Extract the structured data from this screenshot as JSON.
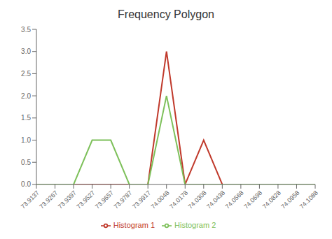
{
  "chart_data": {
    "type": "line",
    "title": "Frequency Polygon",
    "categories": [
      "73.9137",
      "73.9267",
      "73.9397",
      "73.9527",
      "73.9657",
      "73.9787",
      "73.9917",
      "74.0048",
      "74.0178",
      "74.0308",
      "74.0438",
      "74.0568",
      "74.0698",
      "74.0828",
      "74.0958",
      "74.1088"
    ],
    "series": [
      {
        "name": "Histogram 1",
        "color": "#C0392B",
        "values": [
          0,
          0,
          0,
          0,
          0,
          0,
          0,
          3,
          0,
          1,
          0,
          0,
          0,
          0,
          0,
          0
        ]
      },
      {
        "name": "Histogram 2",
        "color": "#7DC05A",
        "values": [
          0,
          0,
          0,
          1,
          1,
          0,
          0,
          2,
          0,
          0,
          0,
          0,
          0,
          0,
          0,
          0
        ]
      }
    ],
    "ylim": [
      0,
      3.5
    ],
    "yticks": [
      {
        "value": 0,
        "label": "0.0"
      },
      0.5,
      {
        "value": 1,
        "label": "1.0"
      },
      1.5,
      {
        "value": 2,
        "label": "2.0"
      },
      2.5,
      {
        "value": 3,
        "label": "3.0"
      },
      3.5
    ],
    "grid": false,
    "legend": "bottom"
  }
}
